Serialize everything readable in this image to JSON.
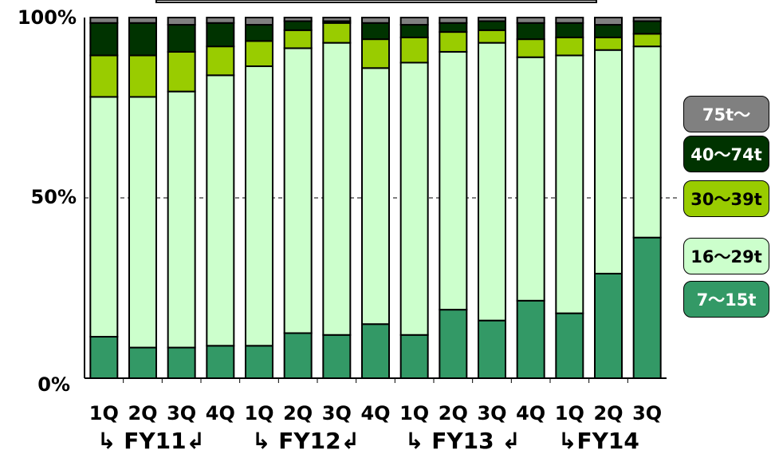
{
  "chart_data": {
    "type": "bar",
    "stacked": true,
    "normalized": true,
    "categories": [
      "1Q",
      "2Q",
      "3Q",
      "4Q",
      "1Q",
      "2Q",
      "3Q",
      "4Q",
      "1Q",
      "2Q",
      "3Q",
      "4Q",
      "1Q",
      "2Q",
      "3Q"
    ],
    "fiscal_years": [
      {
        "label": "↳ FY11↲",
        "quarters": [
          0,
          3
        ]
      },
      {
        "label": "↳ FY12↲",
        "quarters": [
          4,
          7
        ]
      },
      {
        "label": "↳ FY13 ↲",
        "quarters": [
          8,
          11
        ]
      },
      {
        "label": "↳FY14",
        "quarters": [
          12,
          14
        ]
      }
    ],
    "ylim": [
      0,
      100
    ],
    "yticks": [
      "0%",
      "50%",
      "100%"
    ],
    "gridline_at": 50,
    "series": [
      {
        "name": "7～15t",
        "color": "#339966",
        "text_color": "#ffffff",
        "values": [
          11.5,
          8.5,
          8.5,
          9.0,
          9.0,
          12.5,
          12.0,
          15.0,
          12.0,
          19.0,
          16.0,
          21.5,
          18.0,
          29.0,
          39.0
        ]
      },
      {
        "name": "16～29t",
        "color": "#ccffcc",
        "text_color": "#000000",
        "values": [
          66.5,
          69.5,
          71.0,
          75.0,
          77.5,
          79.0,
          81.0,
          71.0,
          75.5,
          71.5,
          77.0,
          67.5,
          71.5,
          62.0,
          53.0
        ]
      },
      {
        "name": "30～39t",
        "color": "#99cc00",
        "text_color": "#000000",
        "values": [
          11.5,
          11.5,
          11.0,
          8.0,
          7.0,
          5.0,
          5.5,
          8.0,
          7.0,
          5.5,
          3.5,
          5.0,
          5.0,
          3.5,
          3.5
        ]
      },
      {
        "name": "40～74t",
        "color": "#003300",
        "text_color": "#ffffff",
        "values": [
          9.0,
          9.0,
          7.5,
          6.5,
          4.5,
          2.5,
          0.5,
          4.5,
          3.5,
          2.5,
          2.5,
          4.5,
          4.0,
          3.5,
          3.5
        ]
      },
      {
        "name": "75t～",
        "color": "#808080",
        "text_color": "#ffffff",
        "values": [
          1.5,
          1.5,
          2.0,
          1.5,
          2.0,
          1.0,
          1.0,
          1.5,
          2.0,
          1.5,
          1.0,
          1.5,
          1.5,
          2.0,
          1.0
        ]
      }
    ],
    "legend_order": [
      "75t～",
      "40～74t",
      "30～39t",
      "16～29t",
      "7～15t"
    ],
    "legend_position": "right"
  }
}
